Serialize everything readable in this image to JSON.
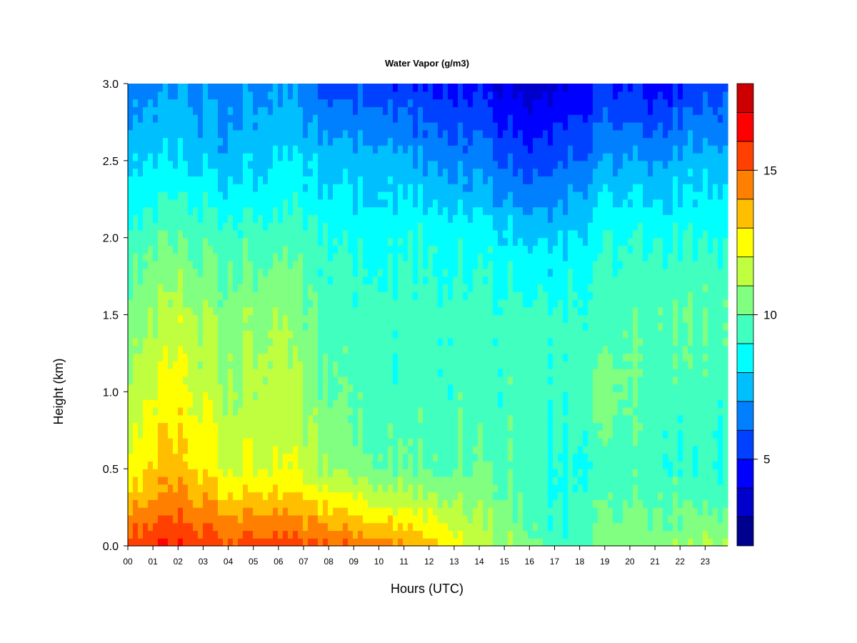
{
  "chart_data": {
    "type": "heatmap",
    "title": "Water Vapor (g/m3)",
    "xlabel": "Hours (UTC)",
    "ylabel": "Height (km)",
    "x_tick_labels": [
      "00",
      "01",
      "02",
      "03",
      "04",
      "05",
      "06",
      "07",
      "08",
      "09",
      "10",
      "11",
      "12",
      "13",
      "14",
      "15",
      "16",
      "17",
      "18",
      "19",
      "20",
      "21",
      "22",
      "23"
    ],
    "x_ticks": [
      0,
      1,
      2,
      3,
      4,
      5,
      6,
      7,
      8,
      9,
      10,
      11,
      12,
      13,
      14,
      15,
      16,
      17,
      18,
      19,
      20,
      21,
      22,
      23
    ],
    "xlim": [
      0,
      23.9
    ],
    "y_ticks": [
      0.0,
      0.5,
      1.0,
      1.5,
      2.0,
      2.5,
      3.0
    ],
    "y_tick_labels": [
      "0.0",
      "0.5",
      "1.0",
      "1.5",
      "2.0",
      "2.5",
      "3.0"
    ],
    "ylim": [
      0,
      3.0
    ],
    "z_unit": "g/m3",
    "colorbar": {
      "levels": [
        2,
        3,
        4,
        5,
        6,
        7,
        8,
        9,
        10,
        11,
        12,
        13,
        14,
        15,
        16,
        17,
        18
      ],
      "colors": [
        "#00008f",
        "#0000cc",
        "#0000ff",
        "#0040ff",
        "#0080ff",
        "#00bfff",
        "#00ffff",
        "#40ffbf",
        "#80ff80",
        "#bfff40",
        "#ffff00",
        "#ffbf00",
        "#ff8000",
        "#ff4000",
        "#ff0000",
        "#cc0000",
        "#8f0000"
      ],
      "tick_values": [
        5,
        10,
        15
      ],
      "tick_labels": [
        "5",
        "10",
        "15"
      ]
    },
    "series": [
      {
        "hour": 0,
        "values_by_height": [
          {
            "height": 0.0,
            "value": 15.5
          },
          {
            "height": 0.5,
            "value": 12.5
          },
          {
            "height": 1.0,
            "value": 11.5
          },
          {
            "height": 1.5,
            "value": 10.5
          },
          {
            "height": 2.0,
            "value": 9.5
          },
          {
            "height": 2.5,
            "value": 8.0
          },
          {
            "height": 3.0,
            "value": 6.5
          }
        ]
      },
      {
        "hour": 2,
        "values_by_height": [
          {
            "height": 0.0,
            "value": 16.0
          },
          {
            "height": 0.5,
            "value": 13.5
          },
          {
            "height": 1.0,
            "value": 12.5
          },
          {
            "height": 1.5,
            "value": 11.5
          },
          {
            "height": 2.0,
            "value": 10.0
          },
          {
            "height": 2.5,
            "value": 8.0
          },
          {
            "height": 3.0,
            "value": 7.0
          }
        ]
      },
      {
        "hour": 4,
        "values_by_height": [
          {
            "height": 0.0,
            "value": 15.5
          },
          {
            "height": 0.5,
            "value": 12.0
          },
          {
            "height": 1.0,
            "value": 11.0
          },
          {
            "height": 1.5,
            "value": 10.5
          },
          {
            "height": 2.0,
            "value": 9.5
          },
          {
            "height": 2.5,
            "value": 7.5
          },
          {
            "height": 3.0,
            "value": 6.5
          }
        ]
      },
      {
        "hour": 6,
        "values_by_height": [
          {
            "height": 0.0,
            "value": 15.5
          },
          {
            "height": 0.5,
            "value": 12.0
          },
          {
            "height": 1.0,
            "value": 11.5
          },
          {
            "height": 1.5,
            "value": 11.0
          },
          {
            "height": 2.0,
            "value": 9.5
          },
          {
            "height": 2.5,
            "value": 8.0
          },
          {
            "height": 3.0,
            "value": 7.0
          }
        ]
      },
      {
        "hour": 8,
        "values_by_height": [
          {
            "height": 0.0,
            "value": 15.0
          },
          {
            "height": 0.5,
            "value": 11.0
          },
          {
            "height": 1.0,
            "value": 10.0
          },
          {
            "height": 1.5,
            "value": 9.5
          },
          {
            "height": 2.0,
            "value": 9.0
          },
          {
            "height": 2.5,
            "value": 7.5
          },
          {
            "height": 3.0,
            "value": 5.5
          }
        ]
      },
      {
        "hour": 10,
        "values_by_height": [
          {
            "height": 0.0,
            "value": 14.5
          },
          {
            "height": 0.5,
            "value": 10.0
          },
          {
            "height": 1.0,
            "value": 9.5
          },
          {
            "height": 1.5,
            "value": 9.5
          },
          {
            "height": 2.0,
            "value": 8.5
          },
          {
            "height": 2.5,
            "value": 7.5
          },
          {
            "height": 3.0,
            "value": 5.5
          }
        ]
      },
      {
        "hour": 12,
        "values_by_height": [
          {
            "height": 0.0,
            "value": 13.5
          },
          {
            "height": 0.5,
            "value": 10.0
          },
          {
            "height": 1.0,
            "value": 9.5
          },
          {
            "height": 1.5,
            "value": 9.5
          },
          {
            "height": 2.0,
            "value": 9.0
          },
          {
            "height": 2.5,
            "value": 7.0
          },
          {
            "height": 3.0,
            "value": 5.0
          }
        ]
      },
      {
        "hour": 14,
        "values_by_height": [
          {
            "height": 0.0,
            "value": 11.5
          },
          {
            "height": 0.5,
            "value": 10.0
          },
          {
            "height": 1.0,
            "value": 9.5
          },
          {
            "height": 1.5,
            "value": 9.5
          },
          {
            "height": 2.0,
            "value": 8.5
          },
          {
            "height": 2.5,
            "value": 6.5
          },
          {
            "height": 3.0,
            "value": 4.5
          }
        ]
      },
      {
        "hour": 16,
        "values_by_height": [
          {
            "height": 0.0,
            "value": 10.5
          },
          {
            "height": 0.5,
            "value": 9.5
          },
          {
            "height": 1.0,
            "value": 9.5
          },
          {
            "height": 1.5,
            "value": 9.5
          },
          {
            "height": 2.0,
            "value": 8.0
          },
          {
            "height": 2.5,
            "value": 5.5
          },
          {
            "height": 3.0,
            "value": 3.5
          }
        ]
      },
      {
        "hour": 17,
        "values_by_height": [
          {
            "height": 0.0,
            "value": 9.0
          },
          {
            "height": 0.5,
            "value": 8.5
          },
          {
            "height": 1.0,
            "value": 9.0
          },
          {
            "height": 1.5,
            "value": 9.0
          },
          {
            "height": 2.0,
            "value": 7.5
          },
          {
            "height": 2.5,
            "value": 5.5
          },
          {
            "height": 3.0,
            "value": 3.5
          }
        ]
      },
      {
        "hour": 19,
        "values_by_height": [
          {
            "height": 0.0,
            "value": 10.5
          },
          {
            "height": 0.5,
            "value": 9.5
          },
          {
            "height": 1.0,
            "value": 10.5
          },
          {
            "height": 1.5,
            "value": 9.5
          },
          {
            "height": 2.0,
            "value": 9.0
          },
          {
            "height": 2.5,
            "value": 7.0
          },
          {
            "height": 3.0,
            "value": 5.0
          }
        ]
      },
      {
        "hour": 21,
        "values_by_height": [
          {
            "height": 0.0,
            "value": 10.5
          },
          {
            "height": 0.5,
            "value": 9.5
          },
          {
            "height": 1.0,
            "value": 9.5
          },
          {
            "height": 1.5,
            "value": 10.0
          },
          {
            "height": 2.0,
            "value": 9.0
          },
          {
            "height": 2.5,
            "value": 7.0
          },
          {
            "height": 3.0,
            "value": 4.5
          }
        ]
      },
      {
        "hour": 23,
        "values_by_height": [
          {
            "height": 0.0,
            "value": 11.0
          },
          {
            "height": 0.5,
            "value": 9.0
          },
          {
            "height": 1.0,
            "value": 9.5
          },
          {
            "height": 1.5,
            "value": 10.0
          },
          {
            "height": 2.0,
            "value": 9.0
          },
          {
            "height": 2.5,
            "value": 7.5
          },
          {
            "height": 3.0,
            "value": 5.5
          }
        ]
      }
    ],
    "grid": false,
    "legend": "colorbar-right"
  }
}
